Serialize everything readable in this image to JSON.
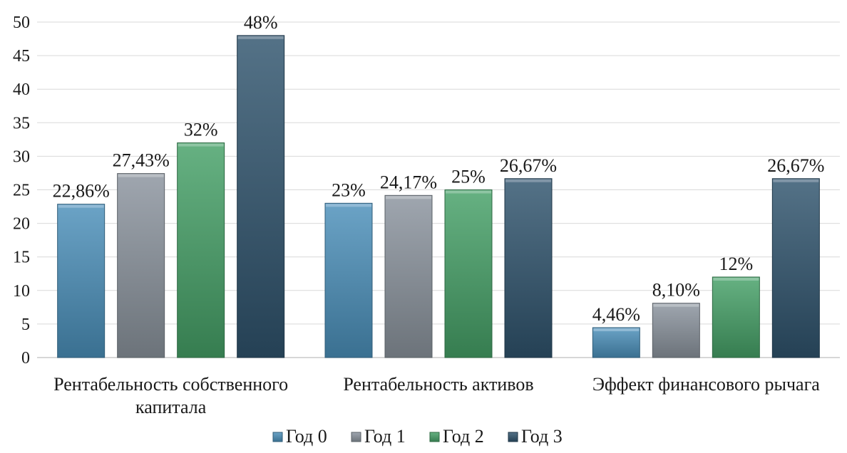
{
  "chart_data": {
    "type": "bar",
    "categories": [
      [
        "Рентабельность собственного",
        "капитала"
      ],
      [
        "Рентабельность активов"
      ],
      [
        "Эффект финансового рычага"
      ]
    ],
    "series": [
      {
        "name": "Год 0",
        "values": [
          22.86,
          23,
          4.46
        ],
        "labels": [
          "22,86%",
          "23%",
          "4,46%"
        ],
        "color": "#4a8fba"
      },
      {
        "name": "Год 1",
        "values": [
          27.43,
          24.17,
          8.1
        ],
        "labels": [
          "27,43%",
          "24,17%",
          "8,10%"
        ],
        "color": "#8a939d"
      },
      {
        "name": "Год 2",
        "values": [
          32,
          25,
          12
        ],
        "labels": [
          "32%",
          "25%",
          "12%"
        ],
        "color": "#45a066"
      },
      {
        "name": "Год 3",
        "values": [
          48,
          26.67,
          26.67
        ],
        "labels": [
          "48%",
          "26,67%",
          "26,67%"
        ],
        "color": "#2f536d"
      }
    ],
    "yticks": [
      0,
      5,
      10,
      15,
      20,
      25,
      30,
      35,
      40,
      45,
      50
    ],
    "ylim": [
      0,
      50
    ],
    "grid": true,
    "legend": "bottom"
  }
}
